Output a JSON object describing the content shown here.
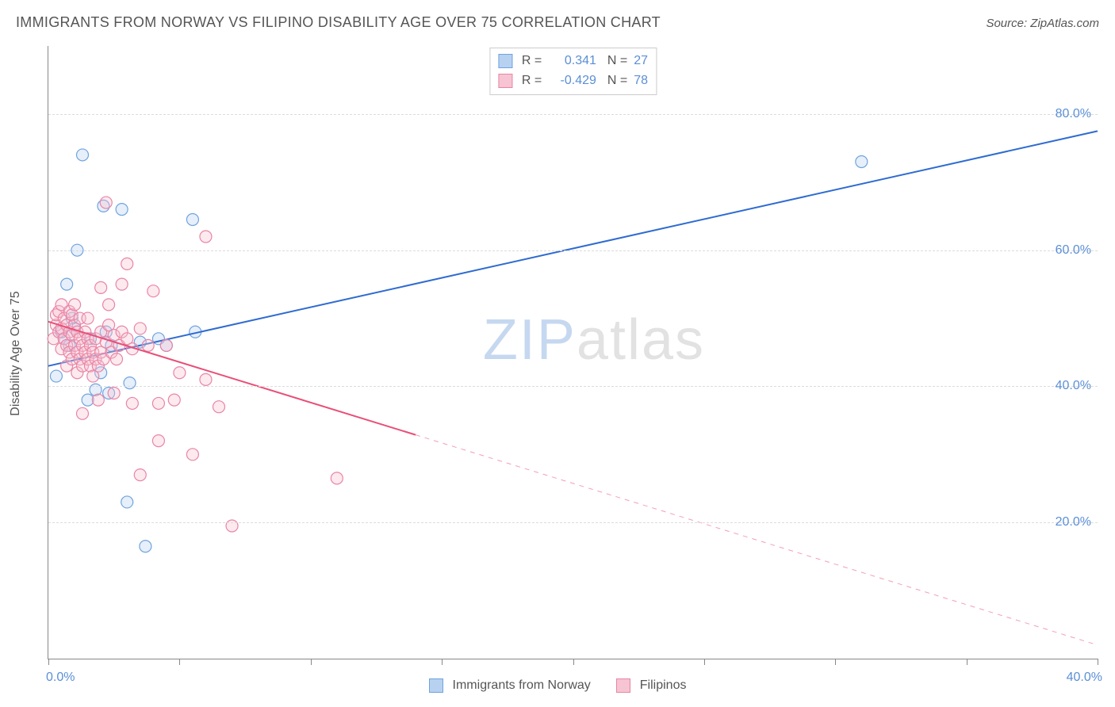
{
  "title": "IMMIGRANTS FROM NORWAY VS FILIPINO DISABILITY AGE OVER 75 CORRELATION CHART",
  "source": "Source: ZipAtlas.com",
  "watermark": {
    "prefix": "ZIP",
    "suffix": "atlas"
  },
  "chart": {
    "type": "scatter",
    "background_color": "#ffffff",
    "grid_color": "#dcdcdc",
    "axis_color": "#888888",
    "tick_label_color": "#5b8fd6",
    "text_color": "#555555",
    "title_fontsize": 18,
    "tick_fontsize": 16,
    "y_axis_label": "Disability Age Over 75",
    "xlim": [
      0,
      40
    ],
    "ylim": [
      0,
      90
    ],
    "x_ticks": [
      0,
      5,
      10,
      15,
      20,
      25,
      30,
      35,
      40
    ],
    "x_tick_labels": {
      "0": "0.0%",
      "40": "40.0%"
    },
    "y_ticks": [
      20,
      40,
      60,
      80
    ],
    "y_tick_labels": {
      "20": "20.0%",
      "40": "40.0%",
      "60": "60.0%",
      "80": "80.0%"
    },
    "marker_radius": 7.5,
    "marker_stroke_width": 1.2,
    "marker_fill_opacity": 0.35,
    "line_width": 2,
    "series": [
      {
        "name": "Immigrants from Norway",
        "color_fill": "#b7d1f0",
        "color_stroke": "#6fa3df",
        "line_color": "#2e6bd1",
        "R": "0.341",
        "N": "27",
        "trend": {
          "x1": 0,
          "y1": 43.0,
          "x2": 40,
          "y2": 77.5,
          "solid_to_x": 40
        },
        "points": [
          [
            0.3,
            41.5
          ],
          [
            0.5,
            48.0
          ],
          [
            0.6,
            47.0
          ],
          [
            0.7,
            55.0
          ],
          [
            0.8,
            46.0
          ],
          [
            0.9,
            50.0
          ],
          [
            1.0,
            48.5
          ],
          [
            1.1,
            60.0
          ],
          [
            1.3,
            74.0
          ],
          [
            1.5,
            38.0
          ],
          [
            1.6,
            47.0
          ],
          [
            1.8,
            39.5
          ],
          [
            2.0,
            42.0
          ],
          [
            2.1,
            66.5
          ],
          [
            2.2,
            48.0
          ],
          [
            2.3,
            39.0
          ],
          [
            2.4,
            46.0
          ],
          [
            2.8,
            66.0
          ],
          [
            3.0,
            23.0
          ],
          [
            3.1,
            40.5
          ],
          [
            3.5,
            46.5
          ],
          [
            3.7,
            16.5
          ],
          [
            4.2,
            47.0
          ],
          [
            4.5,
            46.0
          ],
          [
            5.5,
            64.5
          ],
          [
            5.6,
            48.0
          ],
          [
            31.0,
            73.0
          ]
        ]
      },
      {
        "name": "Filipinos",
        "color_fill": "#f6c4d2",
        "color_stroke": "#ea84a5",
        "line_color": "#e94e77",
        "R": "-0.429",
        "N": "78",
        "trend": {
          "x1": 0,
          "y1": 49.5,
          "x2": 40,
          "y2": 2.0,
          "solid_to_x": 14
        },
        "points": [
          [
            0.2,
            47.0
          ],
          [
            0.3,
            49.0
          ],
          [
            0.3,
            50.5
          ],
          [
            0.4,
            48.0
          ],
          [
            0.4,
            51.0
          ],
          [
            0.5,
            45.5
          ],
          [
            0.5,
            48.5
          ],
          [
            0.5,
            52.0
          ],
          [
            0.6,
            47.0
          ],
          [
            0.6,
            50.0
          ],
          [
            0.7,
            43.0
          ],
          [
            0.7,
            46.0
          ],
          [
            0.7,
            49.0
          ],
          [
            0.8,
            45.0
          ],
          [
            0.8,
            48.0
          ],
          [
            0.8,
            51.0
          ],
          [
            0.9,
            44.0
          ],
          [
            0.9,
            47.5
          ],
          [
            0.9,
            50.5
          ],
          [
            1.0,
            46.0
          ],
          [
            1.0,
            49.0
          ],
          [
            1.0,
            52.0
          ],
          [
            1.1,
            42.0
          ],
          [
            1.1,
            45.0
          ],
          [
            1.1,
            48.0
          ],
          [
            1.2,
            44.0
          ],
          [
            1.2,
            47.0
          ],
          [
            1.2,
            50.0
          ],
          [
            1.3,
            43.0
          ],
          [
            1.3,
            46.0
          ],
          [
            1.3,
            36.0
          ],
          [
            1.4,
            45.0
          ],
          [
            1.4,
            48.0
          ],
          [
            1.5,
            44.0
          ],
          [
            1.5,
            47.0
          ],
          [
            1.5,
            50.0
          ],
          [
            1.6,
            43.0
          ],
          [
            1.6,
            46.0
          ],
          [
            1.7,
            41.5
          ],
          [
            1.7,
            45.0
          ],
          [
            1.8,
            44.0
          ],
          [
            1.8,
            47.0
          ],
          [
            1.9,
            43.0
          ],
          [
            1.9,
            38.0
          ],
          [
            2.0,
            45.0
          ],
          [
            2.0,
            48.0
          ],
          [
            2.0,
            54.5
          ],
          [
            2.1,
            44.0
          ],
          [
            2.2,
            46.5
          ],
          [
            2.2,
            67.0
          ],
          [
            2.3,
            49.0
          ],
          [
            2.3,
            52.0
          ],
          [
            2.4,
            45.0
          ],
          [
            2.5,
            47.5
          ],
          [
            2.5,
            39.0
          ],
          [
            2.6,
            44.0
          ],
          [
            2.7,
            46.0
          ],
          [
            2.8,
            48.0
          ],
          [
            2.8,
            55.0
          ],
          [
            3.0,
            47.0
          ],
          [
            3.0,
            58.0
          ],
          [
            3.2,
            45.5
          ],
          [
            3.2,
            37.5
          ],
          [
            3.5,
            48.5
          ],
          [
            3.5,
            27.0
          ],
          [
            3.8,
            46.0
          ],
          [
            4.0,
            54.0
          ],
          [
            4.2,
            37.5
          ],
          [
            4.2,
            32.0
          ],
          [
            4.5,
            46.0
          ],
          [
            4.8,
            38.0
          ],
          [
            5.0,
            42.0
          ],
          [
            5.5,
            30.0
          ],
          [
            6.0,
            62.0
          ],
          [
            6.0,
            41.0
          ],
          [
            6.5,
            37.0
          ],
          [
            7.0,
            19.5
          ],
          [
            11.0,
            26.5
          ]
        ]
      }
    ]
  },
  "legend_bottom": [
    {
      "label": "Immigrants from Norway",
      "fill": "#b7d1f0",
      "stroke": "#6fa3df"
    },
    {
      "label": "Filipinos",
      "fill": "#f6c4d2",
      "stroke": "#ea84a5"
    }
  ]
}
